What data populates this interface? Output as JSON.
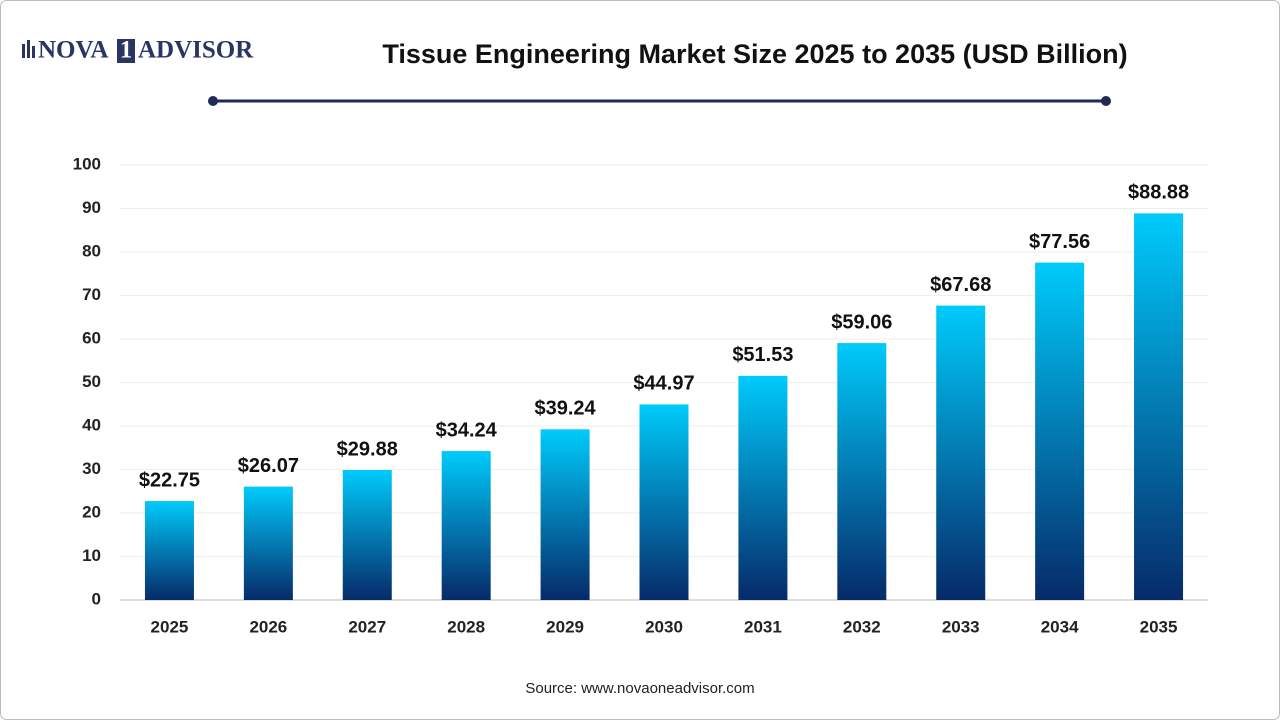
{
  "brand": {
    "left": "NOVA",
    "number": "1",
    "right": "ADVISOR"
  },
  "chart_data": {
    "type": "bar",
    "title": "Tissue Engineering Market Size 2025 to 2035 (USD Billion)",
    "categories": [
      "2025",
      "2026",
      "2027",
      "2028",
      "2029",
      "2030",
      "2031",
      "2032",
      "2033",
      "2034",
      "2035"
    ],
    "values": [
      22.75,
      26.07,
      29.88,
      34.24,
      39.24,
      44.97,
      51.53,
      59.06,
      67.68,
      77.56,
      88.88
    ],
    "value_labels": [
      "$22.75",
      "$26.07",
      "$29.88",
      "$34.24",
      "$39.24",
      "$44.97",
      "$51.53",
      "$59.06",
      "$67.68",
      "$77.56",
      "$88.88"
    ],
    "color": {
      "top": "#00cbfb",
      "bottom": "#062a69"
    },
    "ylim": [
      0,
      100
    ],
    "yticks": [
      0,
      10,
      20,
      30,
      40,
      50,
      60,
      70,
      80,
      90,
      100
    ],
    "grid": true,
    "source": "Source: www.novaoneadvisor.com"
  }
}
